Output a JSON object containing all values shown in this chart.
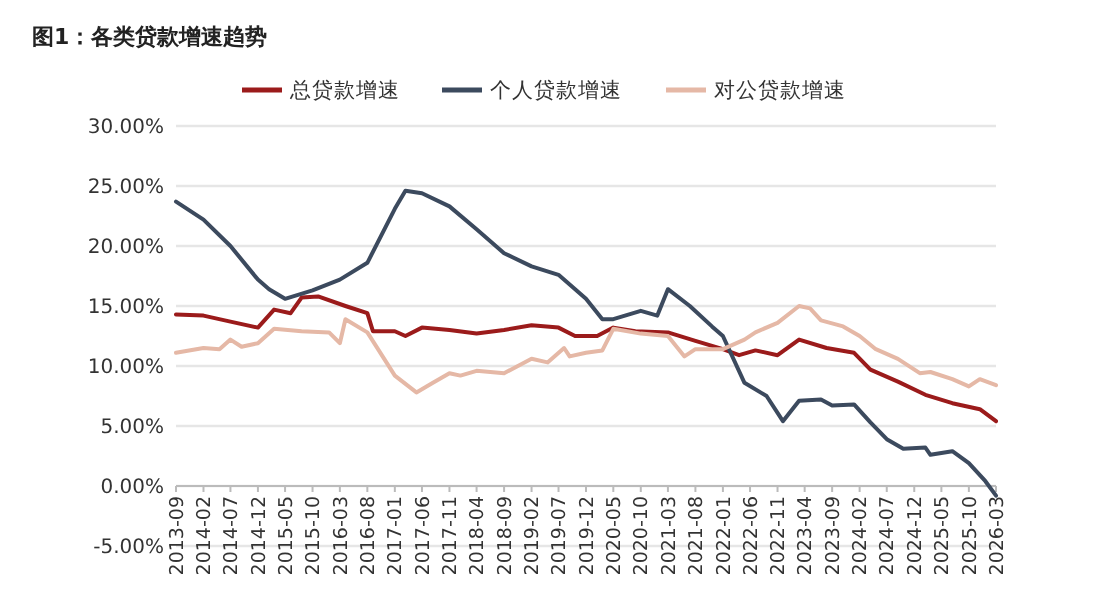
{
  "chart_data": {
    "type": "line",
    "title": "图1：各类贷款增速趋势",
    "xlim": [
      "2013-09",
      "2026-03"
    ],
    "xticks": [
      "2013-09",
      "2014-02",
      "2014-07",
      "2014-12",
      "2015-05",
      "2015-10",
      "2016-03",
      "2016-08",
      "2017-01",
      "2017-06",
      "2017-11",
      "2018-04",
      "2018-09",
      "2019-02",
      "2019-07",
      "2019-12",
      "2020-05",
      "2020-10",
      "2021-03",
      "2021-08",
      "2022-01",
      "2022-06",
      "2022-11",
      "2023-04",
      "2023-09",
      "2024-02",
      "2024-07",
      "2024-12",
      "2025-05",
      "2025-10",
      "2026-03"
    ],
    "ylim": [
      -5,
      30
    ],
    "yticks": [
      {
        "value": -5,
        "label": "-5.00%"
      },
      {
        "value": 0,
        "label": "0.00%"
      },
      {
        "value": 5,
        "label": "5.00%"
      },
      {
        "value": 10,
        "label": "10.00%"
      },
      {
        "value": 15,
        "label": "15.00%"
      },
      {
        "value": 20,
        "label": "20.00%"
      },
      {
        "value": 25,
        "label": "25.00%"
      },
      {
        "value": 30,
        "label": "30.00%"
      }
    ],
    "grid": "y",
    "legend": "top",
    "marker": "none",
    "line_style": "solid",
    "series": [
      {
        "name": "总贷款增速",
        "color": "#9b1b1b",
        "x": [
          "2013-09",
          "2014-02",
          "2014-07",
          "2014-12",
          "2015-03",
          "2015-06",
          "2015-08",
          "2015-11",
          "2016-04",
          "2016-08",
          "2016-09",
          "2017-01",
          "2017-03",
          "2017-06",
          "2017-11",
          "2018-04",
          "2018-09",
          "2019-02",
          "2019-07",
          "2019-10",
          "2020-02",
          "2020-05",
          "2020-09",
          "2021-03",
          "2021-08",
          "2022-01",
          "2022-04",
          "2022-07",
          "2022-11",
          "2023-03",
          "2023-08",
          "2024-01",
          "2024-04",
          "2024-09",
          "2025-02",
          "2025-07",
          "2025-12",
          "2026-03"
        ],
        "values": [
          14.3,
          14.2,
          13.7,
          13.2,
          14.7,
          14.4,
          15.7,
          15.8,
          15.0,
          14.4,
          12.9,
          12.9,
          12.5,
          13.2,
          13.0,
          12.7,
          13.0,
          13.4,
          13.2,
          12.5,
          12.5,
          13.2,
          12.9,
          12.8,
          12.1,
          11.4,
          10.9,
          11.3,
          10.9,
          12.2,
          11.5,
          11.1,
          9.7,
          8.7,
          7.6,
          6.9,
          6.4,
          5.4
        ]
      },
      {
        "name": "个人贷款增速",
        "color": "#3c4a5e",
        "x": [
          "2013-09",
          "2014-02",
          "2014-07",
          "2014-12",
          "2015-02",
          "2015-05",
          "2015-10",
          "2016-03",
          "2016-08",
          "2017-01",
          "2017-03",
          "2017-06",
          "2017-11",
          "2018-04",
          "2018-09",
          "2019-02",
          "2019-07",
          "2019-12",
          "2020-03",
          "2020-05",
          "2020-10",
          "2021-01",
          "2021-03",
          "2021-07",
          "2021-11",
          "2022-01",
          "2022-05",
          "2022-09",
          "2022-12",
          "2023-03",
          "2023-07",
          "2023-09",
          "2024-01",
          "2024-04",
          "2024-07",
          "2024-10",
          "2025-02",
          "2025-03",
          "2025-07",
          "2025-10",
          "2026-01",
          "2026-03"
        ],
        "values": [
          23.7,
          22.2,
          20.0,
          17.2,
          16.4,
          15.6,
          16.3,
          17.2,
          18.6,
          23.1,
          24.6,
          24.4,
          23.3,
          21.4,
          19.4,
          18.3,
          17.6,
          15.6,
          13.9,
          13.9,
          14.6,
          14.2,
          16.4,
          15.0,
          13.3,
          12.5,
          8.6,
          7.5,
          5.4,
          7.1,
          7.2,
          6.7,
          6.8,
          5.3,
          3.9,
          3.1,
          3.2,
          2.6,
          2.9,
          1.9,
          0.4,
          -0.8
        ]
      },
      {
        "name": "对公贷款增速",
        "color": "#e5b8a6",
        "x": [
          "2013-09",
          "2014-02",
          "2014-05",
          "2014-07",
          "2014-09",
          "2014-12",
          "2015-03",
          "2015-08",
          "2016-01",
          "2016-03",
          "2016-04",
          "2016-08",
          "2017-01",
          "2017-05",
          "2017-08",
          "2017-11",
          "2018-01",
          "2018-04",
          "2018-09",
          "2019-02",
          "2019-05",
          "2019-08",
          "2019-09",
          "2019-12",
          "2020-03",
          "2020-05",
          "2020-10",
          "2021-03",
          "2021-06",
          "2021-08",
          "2022-01",
          "2022-05",
          "2022-07",
          "2022-11",
          "2023-03",
          "2023-05",
          "2023-07",
          "2023-11",
          "2024-02",
          "2024-05",
          "2024-09",
          "2025-01",
          "2025-03",
          "2025-07",
          "2025-10",
          "2025-12",
          "2026-03"
        ],
        "values": [
          11.1,
          11.5,
          11.4,
          12.2,
          11.6,
          11.9,
          13.1,
          12.9,
          12.8,
          11.9,
          13.9,
          12.8,
          9.2,
          7.8,
          8.6,
          9.4,
          9.2,
          9.6,
          9.4,
          10.6,
          10.3,
          11.5,
          10.8,
          11.1,
          11.3,
          13.1,
          12.7,
          12.5,
          10.8,
          11.4,
          11.4,
          12.2,
          12.8,
          13.6,
          15.0,
          14.8,
          13.8,
          13.3,
          12.5,
          11.4,
          10.6,
          9.4,
          9.5,
          8.9,
          8.3,
          8.9,
          8.4
        ]
      }
    ]
  }
}
